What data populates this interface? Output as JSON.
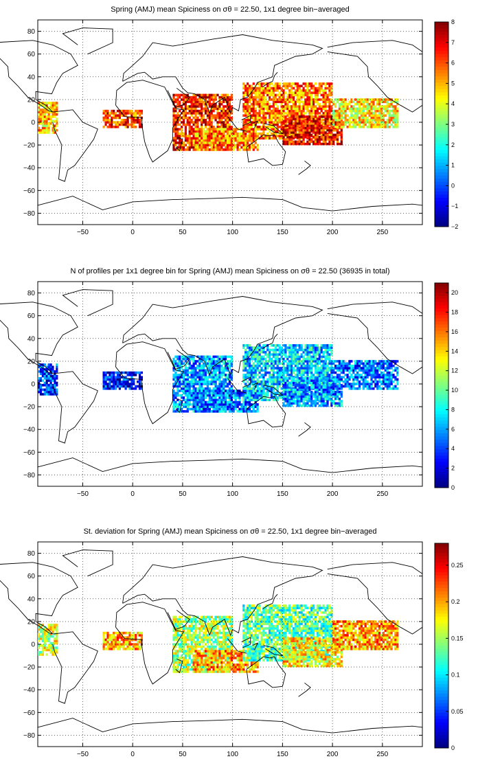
{
  "chart_data": [
    {
      "type": "heatmap",
      "title": "Spring (AMJ) mean Spiciness on σθ = 22.50, 1x1 degree bin−averaged",
      "xlim": [
        -95,
        290
      ],
      "ylim": [
        -90,
        90
      ],
      "x_ticks": [
        "−50",
        "0",
        "50",
        "100",
        "150",
        "200",
        "250"
      ],
      "y_ticks": [
        "80",
        "60",
        "40",
        "20",
        "0",
        "−20",
        "−40",
        "−60",
        "−80"
      ],
      "colorbar": {
        "min": -2,
        "max": 8,
        "ticks": [
          "8",
          "7",
          "6",
          "5",
          "4",
          "3",
          "2",
          "1",
          "0",
          "−1",
          "−2"
        ]
      },
      "grid": true,
      "colormap": "jet",
      "regions": [
        {
          "lon": [
            -95,
            -75
          ],
          "lat": [
            -10,
            18
          ],
          "value": 4.8
        },
        {
          "lon": [
            -30,
            10
          ],
          "lat": [
            -5,
            10
          ],
          "value": 6.2
        },
        {
          "lon": [
            40,
            100
          ],
          "lat": [
            -25,
            25
          ],
          "value": 6.4
        },
        {
          "lon": [
            60,
            125
          ],
          "lat": [
            -25,
            -5
          ],
          "value": 5.4
        },
        {
          "lon": [
            110,
            200
          ],
          "lat": [
            -15,
            35
          ],
          "value": 5.6
        },
        {
          "lon": [
            150,
            210
          ],
          "lat": [
            -20,
            5
          ],
          "value": 6.8
        },
        {
          "lon": [
            200,
            265
          ],
          "lat": [
            -5,
            20
          ],
          "value": 4.4
        }
      ]
    },
    {
      "type": "heatmap",
      "title": "N of profiles per 1x1 degree bin for Spring (AMJ) mean Spiciness on σθ = 22.50 (36935 in total)",
      "xlim": [
        -95,
        290
      ],
      "ylim": [
        -90,
        90
      ],
      "x_ticks": [
        "−50",
        "0",
        "50",
        "100",
        "150",
        "200",
        "250"
      ],
      "y_ticks": [
        "80",
        "60",
        "40",
        "20",
        "0",
        "−20",
        "−40",
        "−60",
        "−80"
      ],
      "colorbar": {
        "min": 0,
        "max": 21,
        "ticks": [
          "20",
          "18",
          "16",
          "14",
          "12",
          "10",
          "8",
          "6",
          "4",
          "2",
          "0"
        ]
      },
      "grid": true,
      "colormap": "jet",
      "regions": [
        {
          "lon": [
            -95,
            -75
          ],
          "lat": [
            -10,
            18
          ],
          "value": 4
        },
        {
          "lon": [
            -30,
            10
          ],
          "lat": [
            -5,
            10
          ],
          "value": 3
        },
        {
          "lon": [
            40,
            100
          ],
          "lat": [
            -25,
            25
          ],
          "value": 6
        },
        {
          "lon": [
            60,
            125
          ],
          "lat": [
            -25,
            -5
          ],
          "value": 5
        },
        {
          "lon": [
            110,
            200
          ],
          "lat": [
            -15,
            35
          ],
          "value": 7
        },
        {
          "lon": [
            150,
            210
          ],
          "lat": [
            -20,
            5
          ],
          "value": 6
        },
        {
          "lon": [
            200,
            265
          ],
          "lat": [
            -5,
            20
          ],
          "value": 5
        }
      ]
    },
    {
      "type": "heatmap",
      "title": "St. deviation for Spring (AMJ) mean Spiciness on σθ = 22.50, 1x1 degree bin−averaged",
      "xlim": [
        -95,
        290
      ],
      "ylim": [
        -90,
        90
      ],
      "x_ticks": [
        "−50",
        "0",
        "50",
        "100",
        "150",
        "200",
        "250"
      ],
      "y_ticks": [
        "80",
        "60",
        "40",
        "20",
        "0",
        "−20",
        "−40",
        "−60",
        "−80"
      ],
      "colorbar": {
        "min": 0,
        "max": 0.28,
        "ticks": [
          "0.25",
          "0.2",
          "0.15",
          "0.1",
          "0.05",
          "0"
        ]
      },
      "grid": true,
      "colormap": "jet",
      "regions": [
        {
          "lon": [
            -95,
            -75
          ],
          "lat": [
            -10,
            18
          ],
          "value": 0.16
        },
        {
          "lon": [
            -30,
            10
          ],
          "lat": [
            -5,
            10
          ],
          "value": 0.2
        },
        {
          "lon": [
            40,
            100
          ],
          "lat": [
            -25,
            25
          ],
          "value": 0.15
        },
        {
          "lon": [
            60,
            125
          ],
          "lat": [
            -25,
            -5
          ],
          "value": 0.2
        },
        {
          "lon": [
            110,
            200
          ],
          "lat": [
            -15,
            35
          ],
          "value": 0.13
        },
        {
          "lon": [
            150,
            210
          ],
          "lat": [
            -20,
            5
          ],
          "value": 0.18
        },
        {
          "lon": [
            200,
            265
          ],
          "lat": [
            -5,
            20
          ],
          "value": 0.2
        }
      ]
    }
  ]
}
